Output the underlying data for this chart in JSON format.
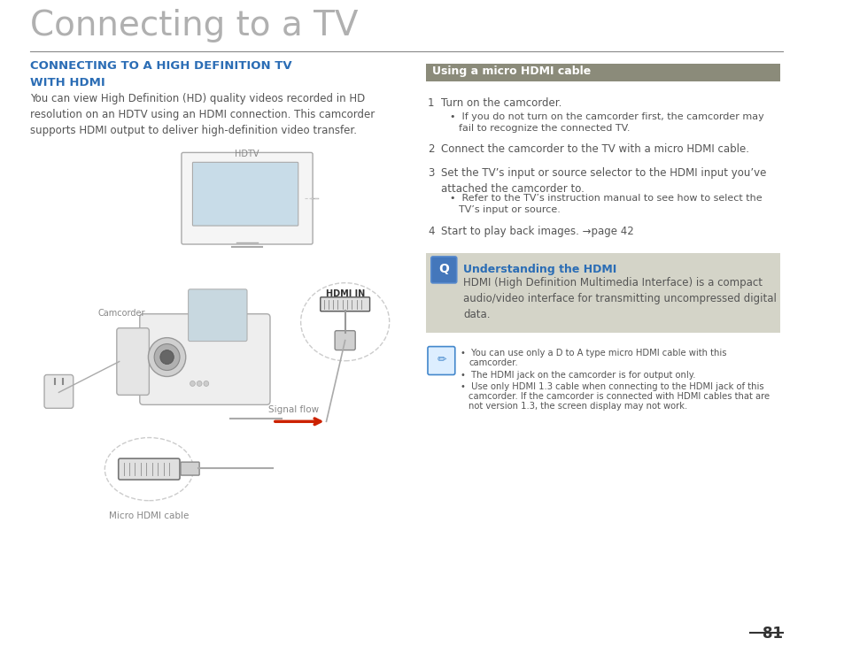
{
  "page_title": "Connecting to a TV",
  "section_title": "CONNECTING TO A HIGH DEFINITION TV\nWITH HDMI",
  "section_color": "#2b6db5",
  "intro_text": "You can view High Definition (HD) quality videos recorded in HD\nresolution on an HDTV using an HDMI connection. This camcorder\nsupports HDMI output to deliver high-definition video transfer.",
  "panel_header": "Using a micro HDMI cable",
  "panel_header_bg": "#8b8b7a",
  "panel_header_text": "#ffffff",
  "steps": [
    {
      "num": "1",
      "text": "Turn on the camcorder.",
      "sub": "If you do not turn on the camcorder first, the camcorder may\nfail to recognize the connected TV."
    },
    {
      "num": "2",
      "text": "Connect the camcorder to the TV with a micro HDMI cable.",
      "sub": ""
    },
    {
      "num": "3",
      "text": "Set the TV’s input or source selector to the HDMI input you’ve\nattached the camcorder to.",
      "sub": "Refer to the TV’s instruction manual to see how to select the\nTV’s input or source."
    },
    {
      "num": "4",
      "text": "Start to play back images. →page 42",
      "sub": ""
    }
  ],
  "tip_bg": "#d4d4c8",
  "tip_title": "Understanding the HDMI",
  "tip_title_color": "#2b6db5",
  "tip_text": "HDMI (High Definition Multimedia Interface) is a compact\naudio/video interface for transmitting uncompressed digital\ndata.",
  "notes": [
    "You can use only a D to A type micro HDMI cable with this\ncamcorder.",
    "The HDMI jack on the camcorder is for output only.",
    "Use only HDMI 1.3 cable when connecting to the HDMI jack of this\ncamcorder. If the camcorder is connected with HDMI cables that are\nnot version 1.3, the screen display may not work."
  ],
  "page_number": "81",
  "bg_color": "#ffffff",
  "text_color": "#555555",
  "title_font_size": 28,
  "section_font_size": 9.5,
  "body_font_size": 8.5,
  "step_font_size": 8.5,
  "note_font_size": 7.2,
  "hdtv_label": "HDTV",
  "camcorder_label": "Camcorder",
  "hdmi_label": "HDMI IN",
  "signal_label": "Signal flow",
  "micro_hdmi_label": "Micro HDMI cable"
}
